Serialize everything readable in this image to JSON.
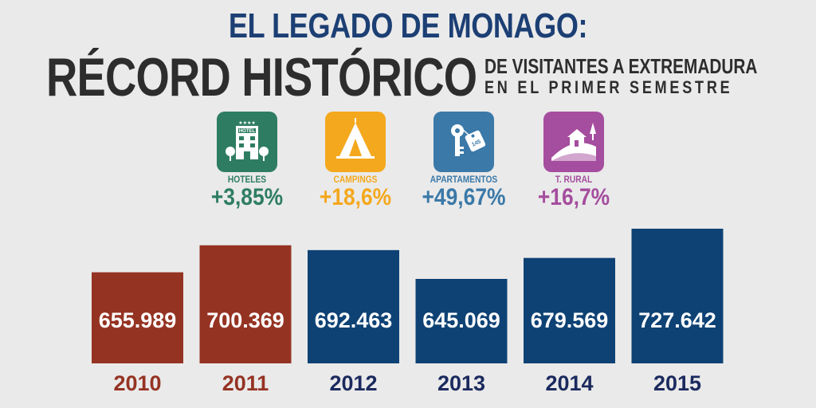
{
  "header": {
    "title_line1": "EL LEGADO DE MONAGO:",
    "title_line2": "RÉCORD HISTÓRICO",
    "subtitle_line1": "DE VISITANTES A EXTREMADURA",
    "subtitle_line2": "EN EL PRIMER SEMESTRE"
  },
  "categories": [
    {
      "label": "HOTELES",
      "pct": "+3,85%",
      "color": "#2e7d62",
      "icon": "hotel-icon",
      "icon_text": "HOTEL"
    },
    {
      "label": "CAMPINGS",
      "pct": "+18,6%",
      "color": "#f4a81d",
      "icon": "tent-icon"
    },
    {
      "label": "APARTAMENTOS",
      "pct": "+49,67%",
      "color": "#3b79a8",
      "icon": "key-icon",
      "icon_text": "145"
    },
    {
      "label": "T. RURAL",
      "pct": "+16,7%",
      "color": "#a54d9e",
      "icon": "rural-house-icon"
    }
  ],
  "chart_data": {
    "type": "bar",
    "categories": [
      "2010",
      "2011",
      "2012",
      "2013",
      "2014",
      "2015"
    ],
    "values": [
      655989,
      700369,
      692463,
      645069,
      679569,
      727642
    ],
    "value_labels": [
      "655.989",
      "700.369",
      "692.463",
      "645.069",
      "679.569",
      "727.642"
    ],
    "bar_colors": [
      "#953323",
      "#953323",
      "#0e4275",
      "#0e4275",
      "#0e4275",
      "#0e4275"
    ],
    "label_colors": [
      "#953323",
      "#953323",
      "#1b2a5e",
      "#1b2a5e",
      "#1b2a5e",
      "#1b2a5e"
    ],
    "title": "",
    "xlabel": "",
    "ylabel": ""
  }
}
